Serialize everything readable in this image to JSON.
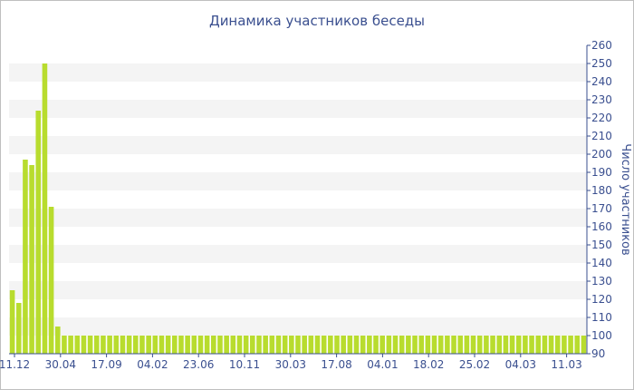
{
  "chart_data": {
    "type": "bar",
    "title": "Динамика участников беседы",
    "ylabel": "Число участников",
    "xlabel": "",
    "ylim": [
      90,
      260
    ],
    "y_ticks": [
      90,
      100,
      110,
      120,
      130,
      140,
      150,
      160,
      170,
      180,
      190,
      200,
      210,
      220,
      230,
      240,
      250,
      260
    ],
    "x_tick_labels": [
      "11.12",
      "30.04",
      "17.09",
      "04.02",
      "23.06",
      "10.11",
      "30.03",
      "17.08",
      "04.01",
      "18.02",
      "25.02",
      "04.03",
      "11.03"
    ],
    "values": [
      125,
      118,
      197,
      194,
      224,
      250,
      171,
      105,
      100,
      100,
      100,
      100,
      100,
      100,
      100,
      100,
      100,
      100,
      100,
      100,
      100,
      100,
      100,
      100,
      100,
      100,
      100,
      100,
      100,
      100,
      100,
      100,
      100,
      100,
      100,
      100,
      100,
      100,
      100,
      100,
      100,
      100,
      100,
      100,
      100,
      100,
      100,
      100,
      100,
      100,
      100,
      100,
      100,
      100,
      100,
      100,
      100,
      100,
      100,
      100,
      100,
      100,
      100,
      100,
      100,
      100,
      100,
      100,
      100,
      100,
      100,
      100,
      100,
      100,
      100,
      100,
      100,
      100,
      100,
      100,
      100,
      100,
      100,
      100,
      100,
      100,
      100,
      100,
      100
    ],
    "bar_color": "#b8dc2e",
    "grid": true,
    "grid_band_color": "#f4f4f4",
    "axis_side": "right"
  }
}
